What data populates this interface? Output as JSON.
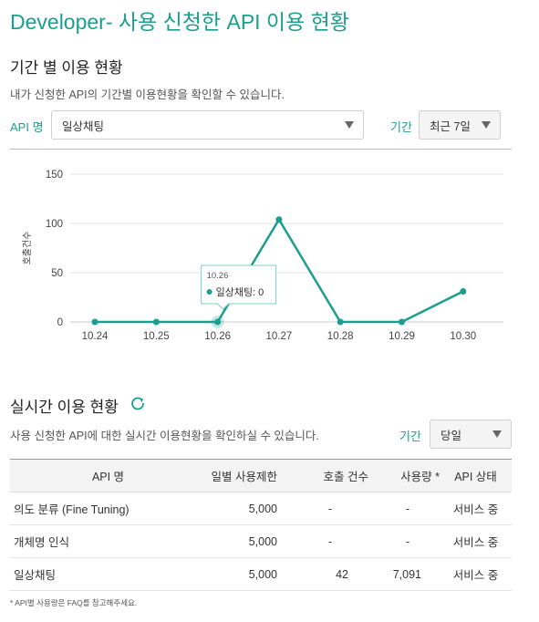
{
  "header": {
    "brand": "Developer",
    "title": "- 사용 신청한 API 이용 현황"
  },
  "period_section": {
    "title": "기간 별 이용 현황",
    "description": "내가 신청한 API의 기간별 이용현황을 확인할 수 있습니다.",
    "api_label": "API 명",
    "api_selected": "일상채팅",
    "period_label": "기간",
    "period_selected": "최근 7일"
  },
  "chart_data": {
    "type": "line",
    "x": [
      "10.24",
      "10.25",
      "10.26",
      "10.27",
      "10.28",
      "10.29",
      "10.30"
    ],
    "series": [
      {
        "name": "일상채팅",
        "values": [
          0,
          0,
          0,
          104,
          0,
          0,
          31
        ]
      }
    ],
    "ylabel": "호출건수",
    "yticks": [
      0,
      50,
      100,
      150
    ],
    "ylim": [
      0,
      150
    ],
    "grid": true,
    "line_color": "#1a9e8e",
    "tooltip": {
      "x": "10.26",
      "series": "일상채팅",
      "value": "0",
      "text": "일상채팅: 0"
    }
  },
  "realtime_section": {
    "title": "실시간 이용 현황",
    "description": "사용 신청한 API에 대한 실시간 이용현황을 확인하실 수 있습니다.",
    "period_label": "기간",
    "period_selected": "당일",
    "table": {
      "headers": [
        "API 명",
        "일별 사용제한",
        "호출 건수",
        "사용량 *",
        "API 상태"
      ],
      "rows": [
        [
          "의도 분류 (Fine Tuning)",
          "5,000",
          "-",
          "-",
          "서비스 중"
        ],
        [
          "개체명 인식",
          "5,000",
          "-",
          "-",
          "서비스 중"
        ],
        [
          "일상채팅",
          "5,000",
          "42",
          "7,091",
          "서비스 중"
        ]
      ]
    },
    "footnote": "* API별 사용량은 FAQ를 참고해주세요."
  },
  "icons": {
    "dropdown": "caret-down-icon",
    "refresh": "refresh-icon"
  },
  "colors": {
    "accent": "#1a9e8e"
  }
}
